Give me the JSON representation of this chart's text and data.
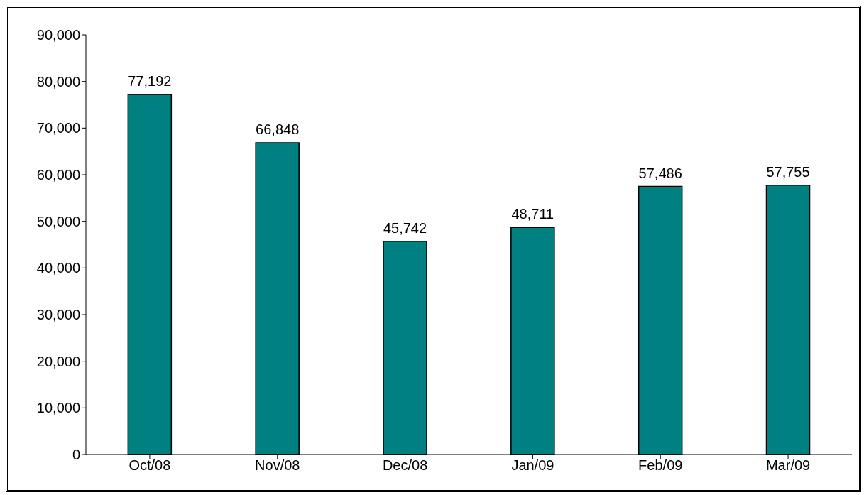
{
  "chart_data": {
    "type": "bar",
    "categories": [
      "Oct/08",
      "Nov/08",
      "Dec/08",
      "Jan/09",
      "Feb/09",
      "Mar/09"
    ],
    "values": [
      77192,
      66848,
      45742,
      48711,
      57486,
      57755
    ],
    "value_labels": [
      "77,192",
      "66,848",
      "45,742",
      "48,711",
      "57,486",
      "57,755"
    ],
    "color": "#008080",
    "ylim": [
      0,
      90000
    ],
    "yticks": [
      0,
      {
        "value": 10000,
        "label": "10,000"
      },
      {
        "value": 20000,
        "label": "20,000"
      },
      {
        "value": 30000,
        "label": "30,000"
      },
      {
        "value": 40000,
        "label": "40,000"
      },
      {
        "value": 50000,
        "label": "50,000"
      },
      {
        "value": 60000,
        "label": "60,000"
      },
      {
        "value": 70000,
        "label": "70,000"
      },
      {
        "value": 80000,
        "label": "80,000"
      },
      {
        "value": 90000,
        "label": "90,000"
      }
    ],
    "grid": false
  }
}
